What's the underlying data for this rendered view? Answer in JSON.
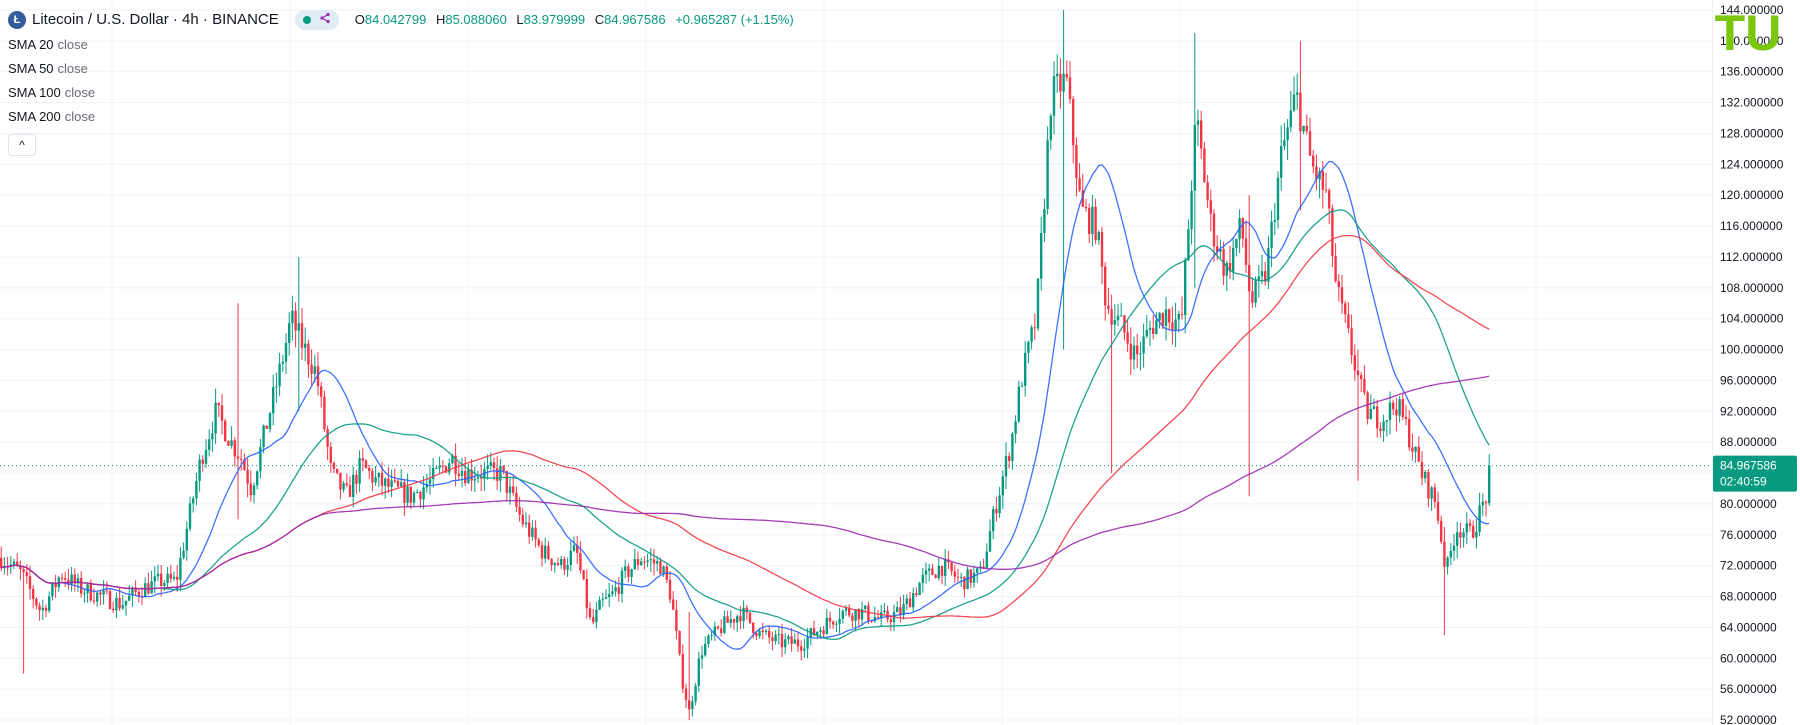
{
  "header": {
    "coin_glyph": "Ł",
    "title": "Litecoin / U.S. Dollar · 4h · BINANCE",
    "ohlc": {
      "o_label": "O",
      "o": "84.042799",
      "h_label": "H",
      "h": "85.088060",
      "l_label": "L",
      "l": "83.979999",
      "c_label": "C",
      "c": "84.967586",
      "change": "+0.965287 (+1.15%)"
    }
  },
  "indicators": [
    {
      "name": "SMA 20",
      "source": "close",
      "color": "#2962ff"
    },
    {
      "name": "SMA 50",
      "source": "close",
      "color": "#089981"
    },
    {
      "name": "SMA 100",
      "source": "close",
      "color": "#f23645"
    },
    {
      "name": "SMA 200",
      "source": "close",
      "color": "#9c27b0"
    }
  ],
  "collapse_glyph": "^",
  "logo_text": "TU",
  "colors": {
    "up": "#089981",
    "down": "#f23645",
    "grid": "#f0f3fa",
    "price_line": "#089981",
    "logo": "#7ac70c",
    "text": "#131722"
  },
  "chart_data": {
    "type": "candlestick",
    "symbol": "Litecoin / U.S. Dollar",
    "interval": "4h",
    "exchange": "BINANCE",
    "ylim": [
      52,
      144
    ],
    "y_ticks": [
      "144.000000",
      "140.000000",
      "136.000000",
      "132.000000",
      "128.000000",
      "124.000000",
      "120.000000",
      "116.000000",
      "112.000000",
      "108.000000",
      "104.000000",
      "100.000000",
      "96.000000",
      "92.000000",
      "88.000000",
      "84.000000",
      "80.000000",
      "76.000000",
      "72.000000",
      "68.000000",
      "64.000000",
      "60.000000",
      "56.000000",
      "52.000000"
    ],
    "last_price": 84.967586,
    "last_price_label": "84.967586",
    "countdown": "02:40:59",
    "grid": true,
    "price_path": [
      [
        0,
        73
      ],
      [
        20,
        71
      ],
      [
        40,
        66
      ],
      [
        60,
        71
      ],
      [
        80,
        69
      ],
      [
        100,
        68
      ],
      [
        120,
        67
      ],
      [
        140,
        69
      ],
      [
        160,
        70
      ],
      [
        175,
        70
      ],
      [
        200,
        86
      ],
      [
        215,
        92
      ],
      [
        230,
        88
      ],
      [
        240,
        86
      ],
      [
        250,
        82
      ],
      [
        265,
        90
      ],
      [
        280,
        98
      ],
      [
        290,
        104
      ],
      [
        300,
        101
      ],
      [
        315,
        97
      ],
      [
        330,
        84
      ],
      [
        345,
        81
      ],
      [
        360,
        85
      ],
      [
        375,
        83
      ],
      [
        390,
        82
      ],
      [
        410,
        81
      ],
      [
        430,
        83
      ],
      [
        450,
        86
      ],
      [
        465,
        84
      ],
      [
        480,
        84
      ],
      [
        500,
        84
      ],
      [
        520,
        78
      ],
      [
        540,
        74
      ],
      [
        560,
        72
      ],
      [
        575,
        74
      ],
      [
        590,
        64
      ],
      [
        600,
        67
      ],
      [
        610,
        68
      ],
      [
        625,
        71
      ],
      [
        640,
        73
      ],
      [
        660,
        72
      ],
      [
        670,
        68
      ],
      [
        680,
        58
      ],
      [
        688,
        53
      ],
      [
        700,
        61
      ],
      [
        720,
        64
      ],
      [
        740,
        66
      ],
      [
        760,
        63
      ],
      [
        780,
        62
      ],
      [
        800,
        62
      ],
      [
        820,
        64
      ],
      [
        840,
        66
      ],
      [
        860,
        66
      ],
      [
        880,
        65
      ],
      [
        900,
        66
      ],
      [
        920,
        70
      ],
      [
        940,
        72
      ],
      [
        960,
        70
      ],
      [
        980,
        71
      ],
      [
        995,
        80
      ],
      [
        1010,
        88
      ],
      [
        1020,
        96
      ],
      [
        1035,
        104
      ],
      [
        1050,
        133
      ],
      [
        1065,
        135
      ],
      [
        1080,
        118
      ],
      [
        1095,
        116
      ],
      [
        1105,
        106
      ],
      [
        1120,
        103
      ],
      [
        1135,
        99
      ],
      [
        1150,
        103
      ],
      [
        1165,
        105
      ],
      [
        1180,
        103
      ],
      [
        1195,
        130
      ],
      [
        1210,
        116
      ],
      [
        1225,
        110
      ],
      [
        1240,
        116
      ],
      [
        1250,
        106
      ],
      [
        1265,
        110
      ],
      [
        1280,
        125
      ],
      [
        1295,
        133
      ],
      [
        1310,
        124
      ],
      [
        1325,
        120
      ],
      [
        1335,
        108
      ],
      [
        1350,
        100
      ],
      [
        1365,
        92
      ],
      [
        1380,
        91
      ],
      [
        1395,
        93
      ],
      [
        1405,
        90
      ],
      [
        1420,
        84
      ],
      [
        1435,
        80
      ],
      [
        1445,
        71
      ],
      [
        1455,
        77
      ],
      [
        1470,
        76
      ],
      [
        1485,
        81
      ],
      [
        1490,
        84.97
      ]
    ],
    "series": [
      {
        "name": "SMA 20",
        "color": "#2962ff"
      },
      {
        "name": "SMA 50",
        "color": "#089981"
      },
      {
        "name": "SMA 100",
        "color": "#f23645"
      },
      {
        "name": "SMA 200",
        "color": "#9c27b0"
      }
    ],
    "notable_wicks": [
      {
        "x": 22,
        "low": 58,
        "high": 72
      },
      {
        "x": 236,
        "low": 78,
        "high": 106
      },
      {
        "x": 297,
        "low": 92,
        "high": 112
      },
      {
        "x": 688,
        "low": 52,
        "high": 66
      },
      {
        "x": 1063,
        "low": 100,
        "high": 144
      },
      {
        "x": 1110,
        "low": 84,
        "high": 104
      },
      {
        "x": 1195,
        "low": 108,
        "high": 141
      },
      {
        "x": 1248,
        "low": 81,
        "high": 120
      },
      {
        "x": 1300,
        "low": 118,
        "high": 140
      },
      {
        "x": 1357,
        "low": 83,
        "high": 100
      },
      {
        "x": 1443,
        "low": 63,
        "high": 77
      }
    ]
  }
}
